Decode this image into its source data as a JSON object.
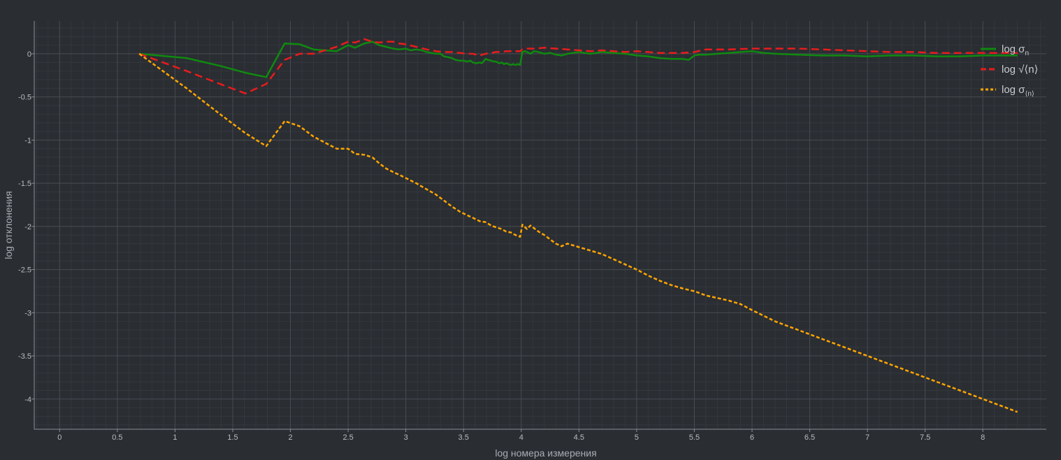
{
  "chart_data": {
    "type": "line",
    "xlabel": "log номера измерения",
    "ylabel": "log отклонения",
    "xlim": [
      -0.22,
      8.55
    ],
    "ylim": [
      -4.35,
      0.38
    ],
    "x_ticks": [
      0,
      0.5,
      1,
      1.5,
      2,
      2.5,
      3,
      3.5,
      4,
      4.5,
      5,
      5.5,
      6,
      6.5,
      7,
      7.5,
      8
    ],
    "x_tick_labels": [
      "0",
      "0.5",
      "1",
      "1.5",
      "2",
      "2.5",
      "3",
      "3.5",
      "4",
      "4.5",
      "5",
      "5.5",
      "6",
      "6.5",
      "7",
      "7.5",
      "8"
    ],
    "y_ticks": [
      0,
      -0.5,
      -1,
      -1.5,
      -2,
      -2.5,
      -3,
      -3.5,
      -4
    ],
    "y_tick_labels": [
      "0",
      "-0.5",
      "-1",
      "-1.5",
      "-2",
      "-2.5",
      "-3",
      "-3.5",
      "-4"
    ],
    "grid": true,
    "legend_position": "top-right",
    "series": [
      {
        "name": "log σn",
        "legend_main": "log σ",
        "legend_sub": "n",
        "color": "#0f8a0f",
        "style": "solid",
        "x": [
          0.69,
          1.1,
          1.39,
          1.61,
          1.79,
          1.95,
          2.08,
          2.2,
          2.3,
          2.4,
          2.5,
          2.56,
          2.64,
          2.71,
          2.77,
          2.83,
          2.89,
          2.94,
          3.0,
          3.04,
          3.09,
          3.14,
          3.18,
          3.22,
          3.26,
          3.3,
          3.33,
          3.37,
          3.4,
          3.43,
          3.47,
          3.5,
          3.53,
          3.56,
          3.58,
          3.61,
          3.64,
          3.66,
          3.69,
          3.71,
          3.74,
          3.76,
          3.78,
          3.81,
          3.83,
          3.85,
          3.87,
          3.89,
          3.91,
          3.93,
          3.95,
          3.97,
          3.99,
          4.01,
          4.03,
          4.05,
          4.08,
          4.11,
          4.15,
          4.2,
          4.25,
          4.3,
          4.35,
          4.4,
          4.45,
          4.5,
          4.55,
          4.6,
          4.65,
          4.7,
          4.8,
          4.9,
          5.0,
          5.1,
          5.2,
          5.3,
          5.4,
          5.45,
          5.5,
          5.55,
          5.6,
          5.7,
          5.8,
          5.9,
          6.0,
          6.1,
          6.2,
          6.4,
          6.6,
          6.8,
          7.0,
          7.2,
          7.4,
          7.6,
          7.8,
          8.0,
          8.2,
          8.3
        ],
        "y": [
          0.0,
          -0.05,
          -0.14,
          -0.22,
          -0.27,
          0.12,
          0.11,
          0.05,
          0.04,
          0.03,
          0.1,
          0.07,
          0.12,
          0.14,
          0.1,
          0.08,
          0.06,
          0.05,
          0.06,
          0.04,
          0.05,
          0.04,
          0.02,
          0.01,
          0.0,
          0.0,
          -0.03,
          -0.04,
          -0.05,
          -0.07,
          -0.08,
          -0.08,
          -0.09,
          -0.08,
          -0.1,
          -0.11,
          -0.1,
          -0.11,
          -0.06,
          -0.07,
          -0.08,
          -0.09,
          -0.09,
          -0.11,
          -0.1,
          -0.12,
          -0.11,
          -0.12,
          -0.13,
          -0.12,
          -0.13,
          -0.12,
          -0.13,
          0.02,
          0.03,
          0.02,
          0.0,
          0.03,
          0.02,
          0.0,
          0.01,
          -0.01,
          -0.02,
          0.0,
          0.01,
          0.02,
          0.01,
          0.0,
          0.01,
          0.02,
          0.01,
          0.0,
          -0.02,
          -0.03,
          -0.05,
          -0.06,
          -0.06,
          -0.07,
          -0.02,
          -0.01,
          -0.01,
          0.0,
          0.01,
          0.02,
          0.03,
          0.01,
          0.0,
          -0.01,
          -0.02,
          -0.02,
          -0.03,
          -0.02,
          -0.02,
          -0.03,
          -0.03,
          -0.02,
          -0.02,
          -0.02
        ]
      },
      {
        "name": "log √⟨n⟩",
        "legend_main": "log √⟨n⟩",
        "legend_sub": "",
        "color": "#e81c1c",
        "style": "dashed",
        "x": [
          0.69,
          1.1,
          1.39,
          1.61,
          1.79,
          1.95,
          2.08,
          2.2,
          2.3,
          2.4,
          2.5,
          2.56,
          2.64,
          2.71,
          2.77,
          2.83,
          2.89,
          2.94,
          3.0,
          3.09,
          3.18,
          3.26,
          3.33,
          3.4,
          3.47,
          3.53,
          3.58,
          3.64,
          3.69,
          3.74,
          3.78,
          3.83,
          3.87,
          3.91,
          3.95,
          3.99,
          4.01,
          4.05,
          4.11,
          4.2,
          4.3,
          4.4,
          4.5,
          4.6,
          4.7,
          4.8,
          4.9,
          5.0,
          5.1,
          5.2,
          5.3,
          5.4,
          5.5,
          5.6,
          5.8,
          6.0,
          6.2,
          6.4,
          6.6,
          6.8,
          7.0,
          7.2,
          7.4,
          7.6,
          7.8,
          8.0,
          8.2,
          8.3
        ],
        "y": [
          0.0,
          -0.2,
          -0.35,
          -0.46,
          -0.35,
          -0.07,
          0.0,
          0.0,
          0.04,
          0.08,
          0.14,
          0.13,
          0.17,
          0.14,
          0.13,
          0.14,
          0.14,
          0.12,
          0.11,
          0.08,
          0.05,
          0.03,
          0.02,
          0.02,
          0.01,
          0.0,
          0.0,
          -0.02,
          0.0,
          0.01,
          0.02,
          0.02,
          0.03,
          0.03,
          0.03,
          0.03,
          0.05,
          0.06,
          0.06,
          0.07,
          0.06,
          0.05,
          0.04,
          0.03,
          0.04,
          0.03,
          0.02,
          0.03,
          0.02,
          0.01,
          0.01,
          0.01,
          0.02,
          0.05,
          0.05,
          0.06,
          0.06,
          0.06,
          0.05,
          0.04,
          0.03,
          0.02,
          0.02,
          0.01,
          0.01,
          0.01,
          0.01,
          0.01
        ]
      },
      {
        "name": "log σ⟨n⟩",
        "legend_main": "log σ",
        "legend_sub": "⟨n⟩",
        "color": "#ffa500",
        "style": "dotted",
        "x": [
          0.69,
          1.1,
          1.39,
          1.61,
          1.79,
          1.95,
          2.08,
          2.2,
          2.3,
          2.4,
          2.5,
          2.56,
          2.64,
          2.71,
          2.77,
          2.83,
          2.89,
          2.94,
          3.0,
          3.09,
          3.18,
          3.26,
          3.33,
          3.4,
          3.47,
          3.53,
          3.58,
          3.64,
          3.69,
          3.74,
          3.78,
          3.83,
          3.87,
          3.91,
          3.95,
          3.99,
          4.01,
          4.05,
          4.08,
          4.11,
          4.15,
          4.2,
          4.25,
          4.3,
          4.35,
          4.4,
          4.5,
          4.6,
          4.7,
          4.8,
          4.9,
          5.0,
          5.1,
          5.2,
          5.3,
          5.4,
          5.5,
          5.6,
          5.7,
          5.8,
          5.9,
          6.0,
          6.2,
          6.4,
          6.6,
          6.8,
          7.0,
          7.2,
          7.4,
          7.6,
          7.8,
          8.0,
          8.2,
          8.3
        ],
        "y": [
          0.0,
          -0.4,
          -0.7,
          -0.92,
          -1.07,
          -0.78,
          -0.84,
          -0.96,
          -1.03,
          -1.1,
          -1.1,
          -1.16,
          -1.17,
          -1.2,
          -1.27,
          -1.33,
          -1.37,
          -1.4,
          -1.44,
          -1.5,
          -1.57,
          -1.63,
          -1.7,
          -1.77,
          -1.83,
          -1.87,
          -1.9,
          -1.94,
          -1.95,
          -1.99,
          -2.01,
          -2.03,
          -2.06,
          -2.07,
          -2.1,
          -2.12,
          -1.98,
          -2.03,
          -1.99,
          -2.02,
          -2.06,
          -2.1,
          -2.15,
          -2.2,
          -2.23,
          -2.2,
          -2.24,
          -2.28,
          -2.32,
          -2.38,
          -2.44,
          -2.5,
          -2.57,
          -2.63,
          -2.68,
          -2.72,
          -2.75,
          -2.8,
          -2.83,
          -2.86,
          -2.9,
          -2.97,
          -3.1,
          -3.2,
          -3.3,
          -3.4,
          -3.5,
          -3.6,
          -3.7,
          -3.8,
          -3.9,
          -4.0,
          -4.1,
          -4.15
        ]
      }
    ]
  }
}
